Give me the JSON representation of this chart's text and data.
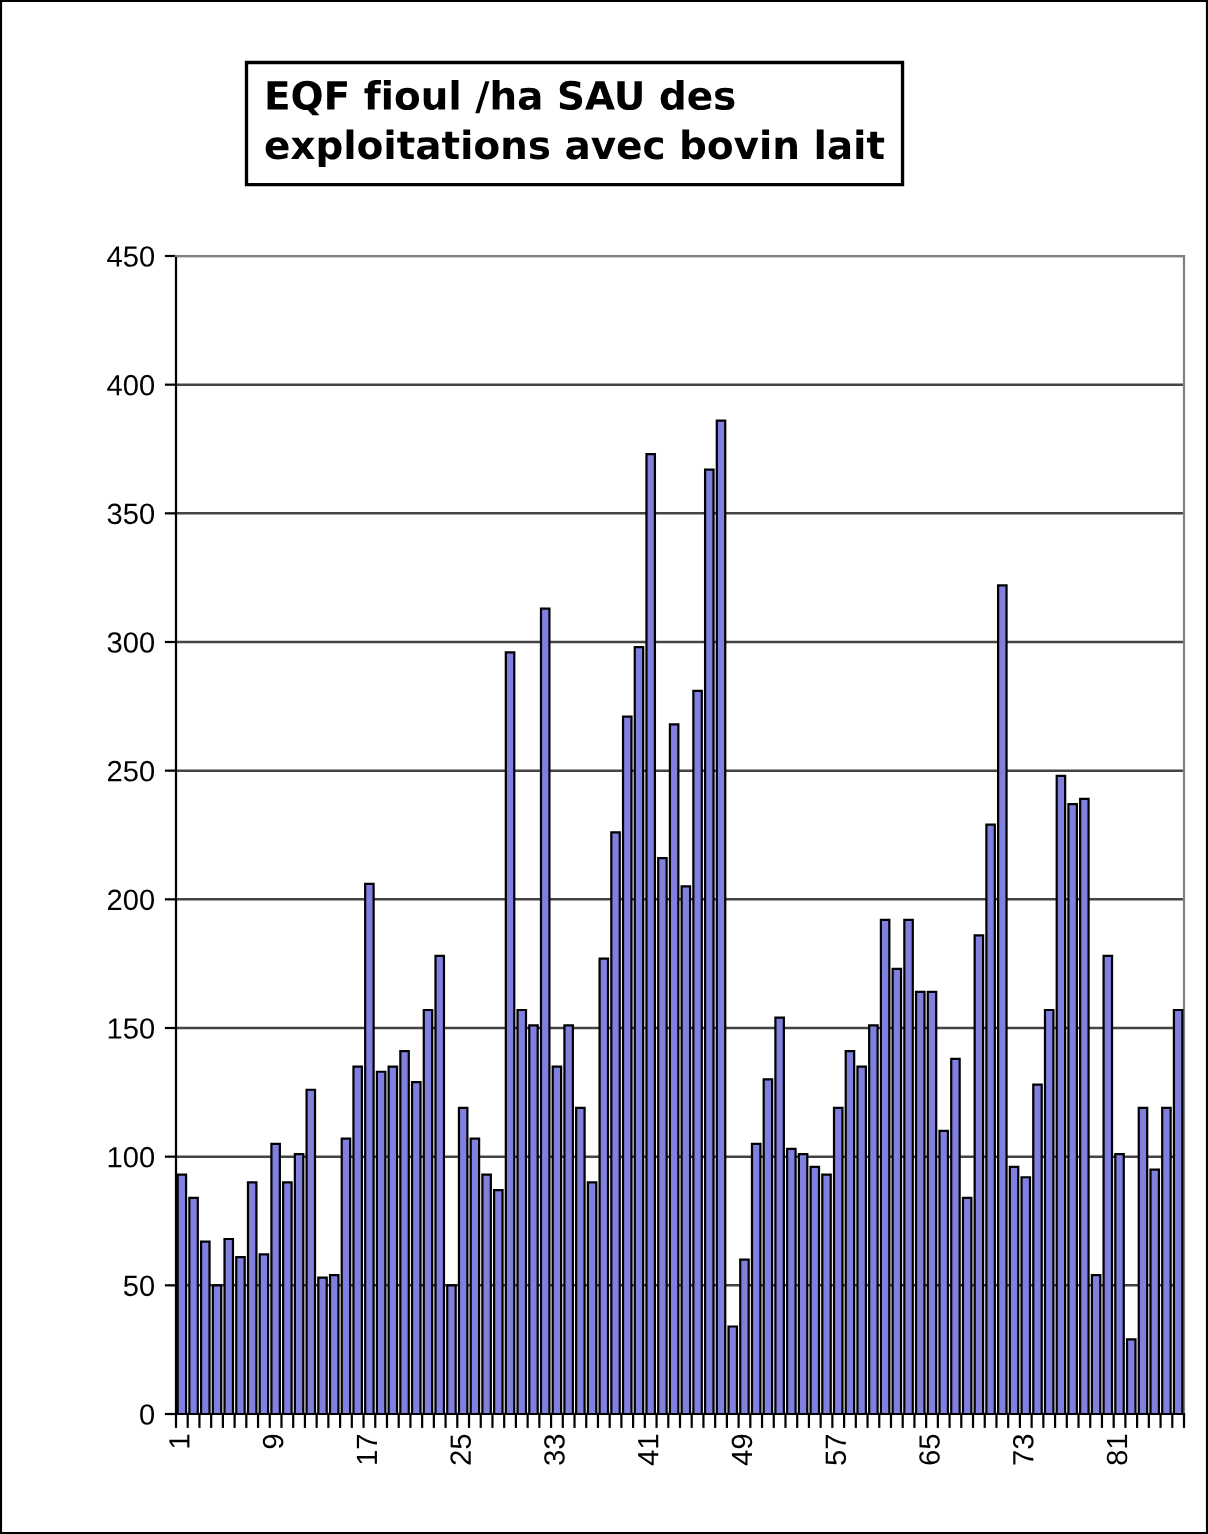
{
  "chart_data": {
    "type": "bar",
    "title": "EQF fioul /ha SAU des exploitations avec bovin lait",
    "categories": [
      "1",
      null,
      null,
      null,
      null,
      null,
      null,
      null,
      "9",
      null,
      null,
      null,
      null,
      null,
      null,
      null,
      "17",
      null,
      null,
      null,
      null,
      null,
      null,
      null,
      "25",
      null,
      null,
      null,
      null,
      null,
      null,
      null,
      "33",
      null,
      null,
      null,
      null,
      null,
      null,
      null,
      "41",
      null,
      null,
      null,
      null,
      null,
      null,
      null,
      "49",
      null,
      null,
      null,
      null,
      null,
      null,
      null,
      "57",
      null,
      null,
      null,
      null,
      null,
      null,
      null,
      "65",
      null,
      null,
      null,
      null,
      null,
      null,
      null,
      "73",
      null,
      null,
      null,
      null,
      null,
      null,
      null,
      "81",
      null,
      null,
      null,
      null,
      null
    ],
    "values": [
      93,
      84,
      67,
      50,
      68,
      61,
      90,
      62,
      105,
      90,
      101,
      126,
      53,
      54,
      107,
      135,
      206,
      133,
      135,
      141,
      129,
      157,
      178,
      50,
      119,
      107,
      93,
      87,
      296,
      157,
      151,
      313,
      135,
      151,
      119,
      90,
      177,
      226,
      271,
      298,
      373,
      216,
      268,
      205,
      281,
      367,
      386,
      34,
      60,
      105,
      130,
      154,
      103,
      101,
      96,
      93,
      119,
      141,
      135,
      151,
      192,
      173,
      192,
      164,
      164,
      110,
      138,
      84,
      186,
      229,
      322,
      96,
      92,
      128,
      157,
      248,
      237,
      239,
      54,
      178,
      101,
      29,
      119,
      95,
      119,
      157
    ],
    "color": "#8080e0",
    "ylim": [
      0,
      450
    ],
    "yticks": [
      0,
      50,
      100,
      150,
      200,
      250,
      300,
      350,
      400,
      450
    ],
    "grid": "y"
  }
}
